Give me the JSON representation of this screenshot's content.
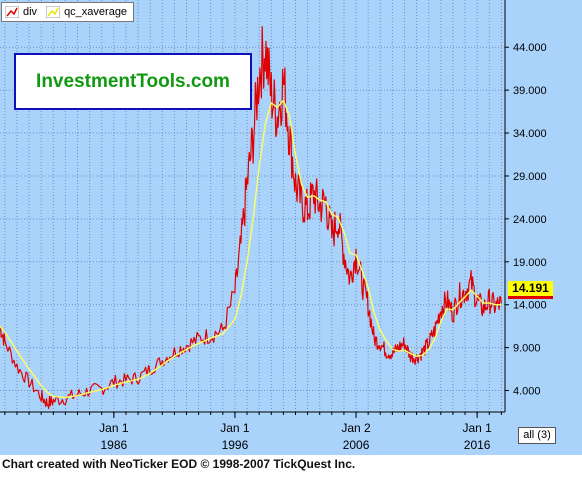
{
  "chart_data": {
    "type": "line",
    "title": "",
    "legend": [
      "div",
      "qc_xaverage"
    ],
    "legend_placement": "top-left",
    "x_ticks": [
      {
        "line1": "Jan 1",
        "line2": "1986",
        "year": 1986
      },
      {
        "line1": "Jan 1",
        "line2": "1996",
        "year": 1996
      },
      {
        "line1": "Jan 2",
        "line2": "2006",
        "year": 2006
      },
      {
        "line1": "Jan 1",
        "line2": "2016",
        "year": 2016
      }
    ],
    "y_ticks": [
      4.0,
      9.0,
      14.0,
      19.0,
      24.0,
      29.0,
      34.0,
      39.0,
      44.0
    ],
    "y_tick_labels": [
      "4.000",
      "9.000",
      "14.000",
      "19.000",
      "24.000",
      "29.000",
      "34.000",
      "39.000",
      "44.000"
    ],
    "x_range": [
      1976.6,
      2018.3
    ],
    "y_range": [
      1.5,
      49.5
    ],
    "grid": true,
    "last_value_label": "14.191",
    "series": [
      {
        "name": "div",
        "color": "#e00000",
        "x": [
          1976.6,
          1977.0,
          1978.0,
          1979.0,
          1980.0,
          1980.5,
          1981.0,
          1982.0,
          1983.0,
          1984.0,
          1985.0,
          1986.0,
          1987.0,
          1988.0,
          1989.0,
          1990.0,
          1991.0,
          1992.0,
          1993.0,
          1994.0,
          1995.0,
          1996.0,
          1996.5,
          1997.0,
          1997.5,
          1998.0,
          1998.5,
          1999.0,
          1999.5,
          2000.0,
          2000.5,
          2001.0,
          2001.5,
          2002.0,
          2002.5,
          2003.0,
          2003.5,
          2004.0,
          2004.5,
          2005.0,
          2005.5,
          2006.0,
          2006.5,
          2007.0,
          2007.5,
          2008.0,
          2008.5,
          2009.0,
          2009.5,
          2010.0,
          2010.5,
          2011.0,
          2011.5,
          2012.0,
          2012.5,
          2013.0,
          2013.5,
          2014.0,
          2014.5,
          2015.0,
          2015.5,
          2016.0,
          2016.5,
          2017.0,
          2017.5,
          2018.0
        ],
        "y": [
          11.5,
          9.7,
          6.8,
          5.0,
          3.3,
          2.5,
          2.8,
          3.1,
          3.5,
          4.0,
          4.2,
          5.0,
          5.2,
          5.5,
          6.5,
          7.5,
          8.5,
          9.3,
          10.0,
          10.5,
          11.0,
          15.5,
          21.0,
          28.0,
          33.5,
          41.0,
          44.0,
          38.5,
          36.0,
          40.0,
          34.0,
          28.0,
          26.0,
          25.0,
          27.0,
          25.5,
          26.0,
          22.0,
          24.0,
          20.0,
          17.0,
          20.0,
          16.5,
          14.0,
          10.0,
          9.5,
          8.5,
          8.3,
          9.0,
          9.5,
          8.0,
          7.8,
          8.5,
          9.5,
          11.0,
          13.5,
          14.5,
          13.0,
          15.0,
          15.5,
          16.5,
          14.5,
          13.5,
          14.5,
          13.8,
          14.191
        ]
      },
      {
        "name": "qc_xaverage",
        "color": "#ffff60",
        "x": [
          1976.6,
          1977.0,
          1978.0,
          1979.0,
          1980.0,
          1980.5,
          1981.0,
          1982.0,
          1983.0,
          1984.0,
          1985.0,
          1986.0,
          1987.0,
          1988.0,
          1989.0,
          1990.0,
          1991.0,
          1992.0,
          1993.0,
          1994.0,
          1995.0,
          1996.0,
          1996.5,
          1997.0,
          1997.5,
          1998.0,
          1998.5,
          1999.0,
          1999.5,
          2000.0,
          2000.5,
          2001.0,
          2001.5,
          2002.0,
          2002.5,
          2003.0,
          2003.5,
          2004.0,
          2004.5,
          2005.0,
          2005.5,
          2006.0,
          2006.5,
          2007.0,
          2007.5,
          2008.0,
          2008.5,
          2009.0,
          2009.5,
          2010.0,
          2010.5,
          2011.0,
          2011.5,
          2012.0,
          2012.5,
          2013.0,
          2013.5,
          2014.0,
          2014.5,
          2015.0,
          2015.5,
          2016.0,
          2016.5,
          2017.0,
          2017.5,
          2018.0
        ],
        "y": [
          11.5,
          10.8,
          8.6,
          6.5,
          4.6,
          3.8,
          3.3,
          3.2,
          3.4,
          3.8,
          4.1,
          4.6,
          5.0,
          5.3,
          6.0,
          7.0,
          8.0,
          8.8,
          9.5,
          10.1,
          10.6,
          12.3,
          15.0,
          19.0,
          24.0,
          30.0,
          35.0,
          37.5,
          37.0,
          37.8,
          36.0,
          31.5,
          28.0,
          26.5,
          26.7,
          26.2,
          26.0,
          24.5,
          24.2,
          22.5,
          20.0,
          19.8,
          18.0,
          16.0,
          13.0,
          11.0,
          9.8,
          8.8,
          8.6,
          8.7,
          8.3,
          8.0,
          8.1,
          8.8,
          10.0,
          12.0,
          13.5,
          13.4,
          14.2,
          14.9,
          15.7,
          15.0,
          14.2,
          14.2,
          14.0,
          14.0
        ]
      }
    ]
  },
  "watermark_text": "InvestmentTools.com",
  "footer_text": "Chart created with NeoTicker EOD © 1998-2007 TickQuest Inc.",
  "range_button_label": "all (3)",
  "colors": {
    "background": "#a9d3fb",
    "plot_background": "#a9d3fb",
    "grid": "#7090c0",
    "div_line": "#e00000",
    "avg_line": "#ffff60",
    "price_tag": "#ffff00",
    "watermark_text": "#119a11",
    "watermark_border": "#1010b8"
  }
}
